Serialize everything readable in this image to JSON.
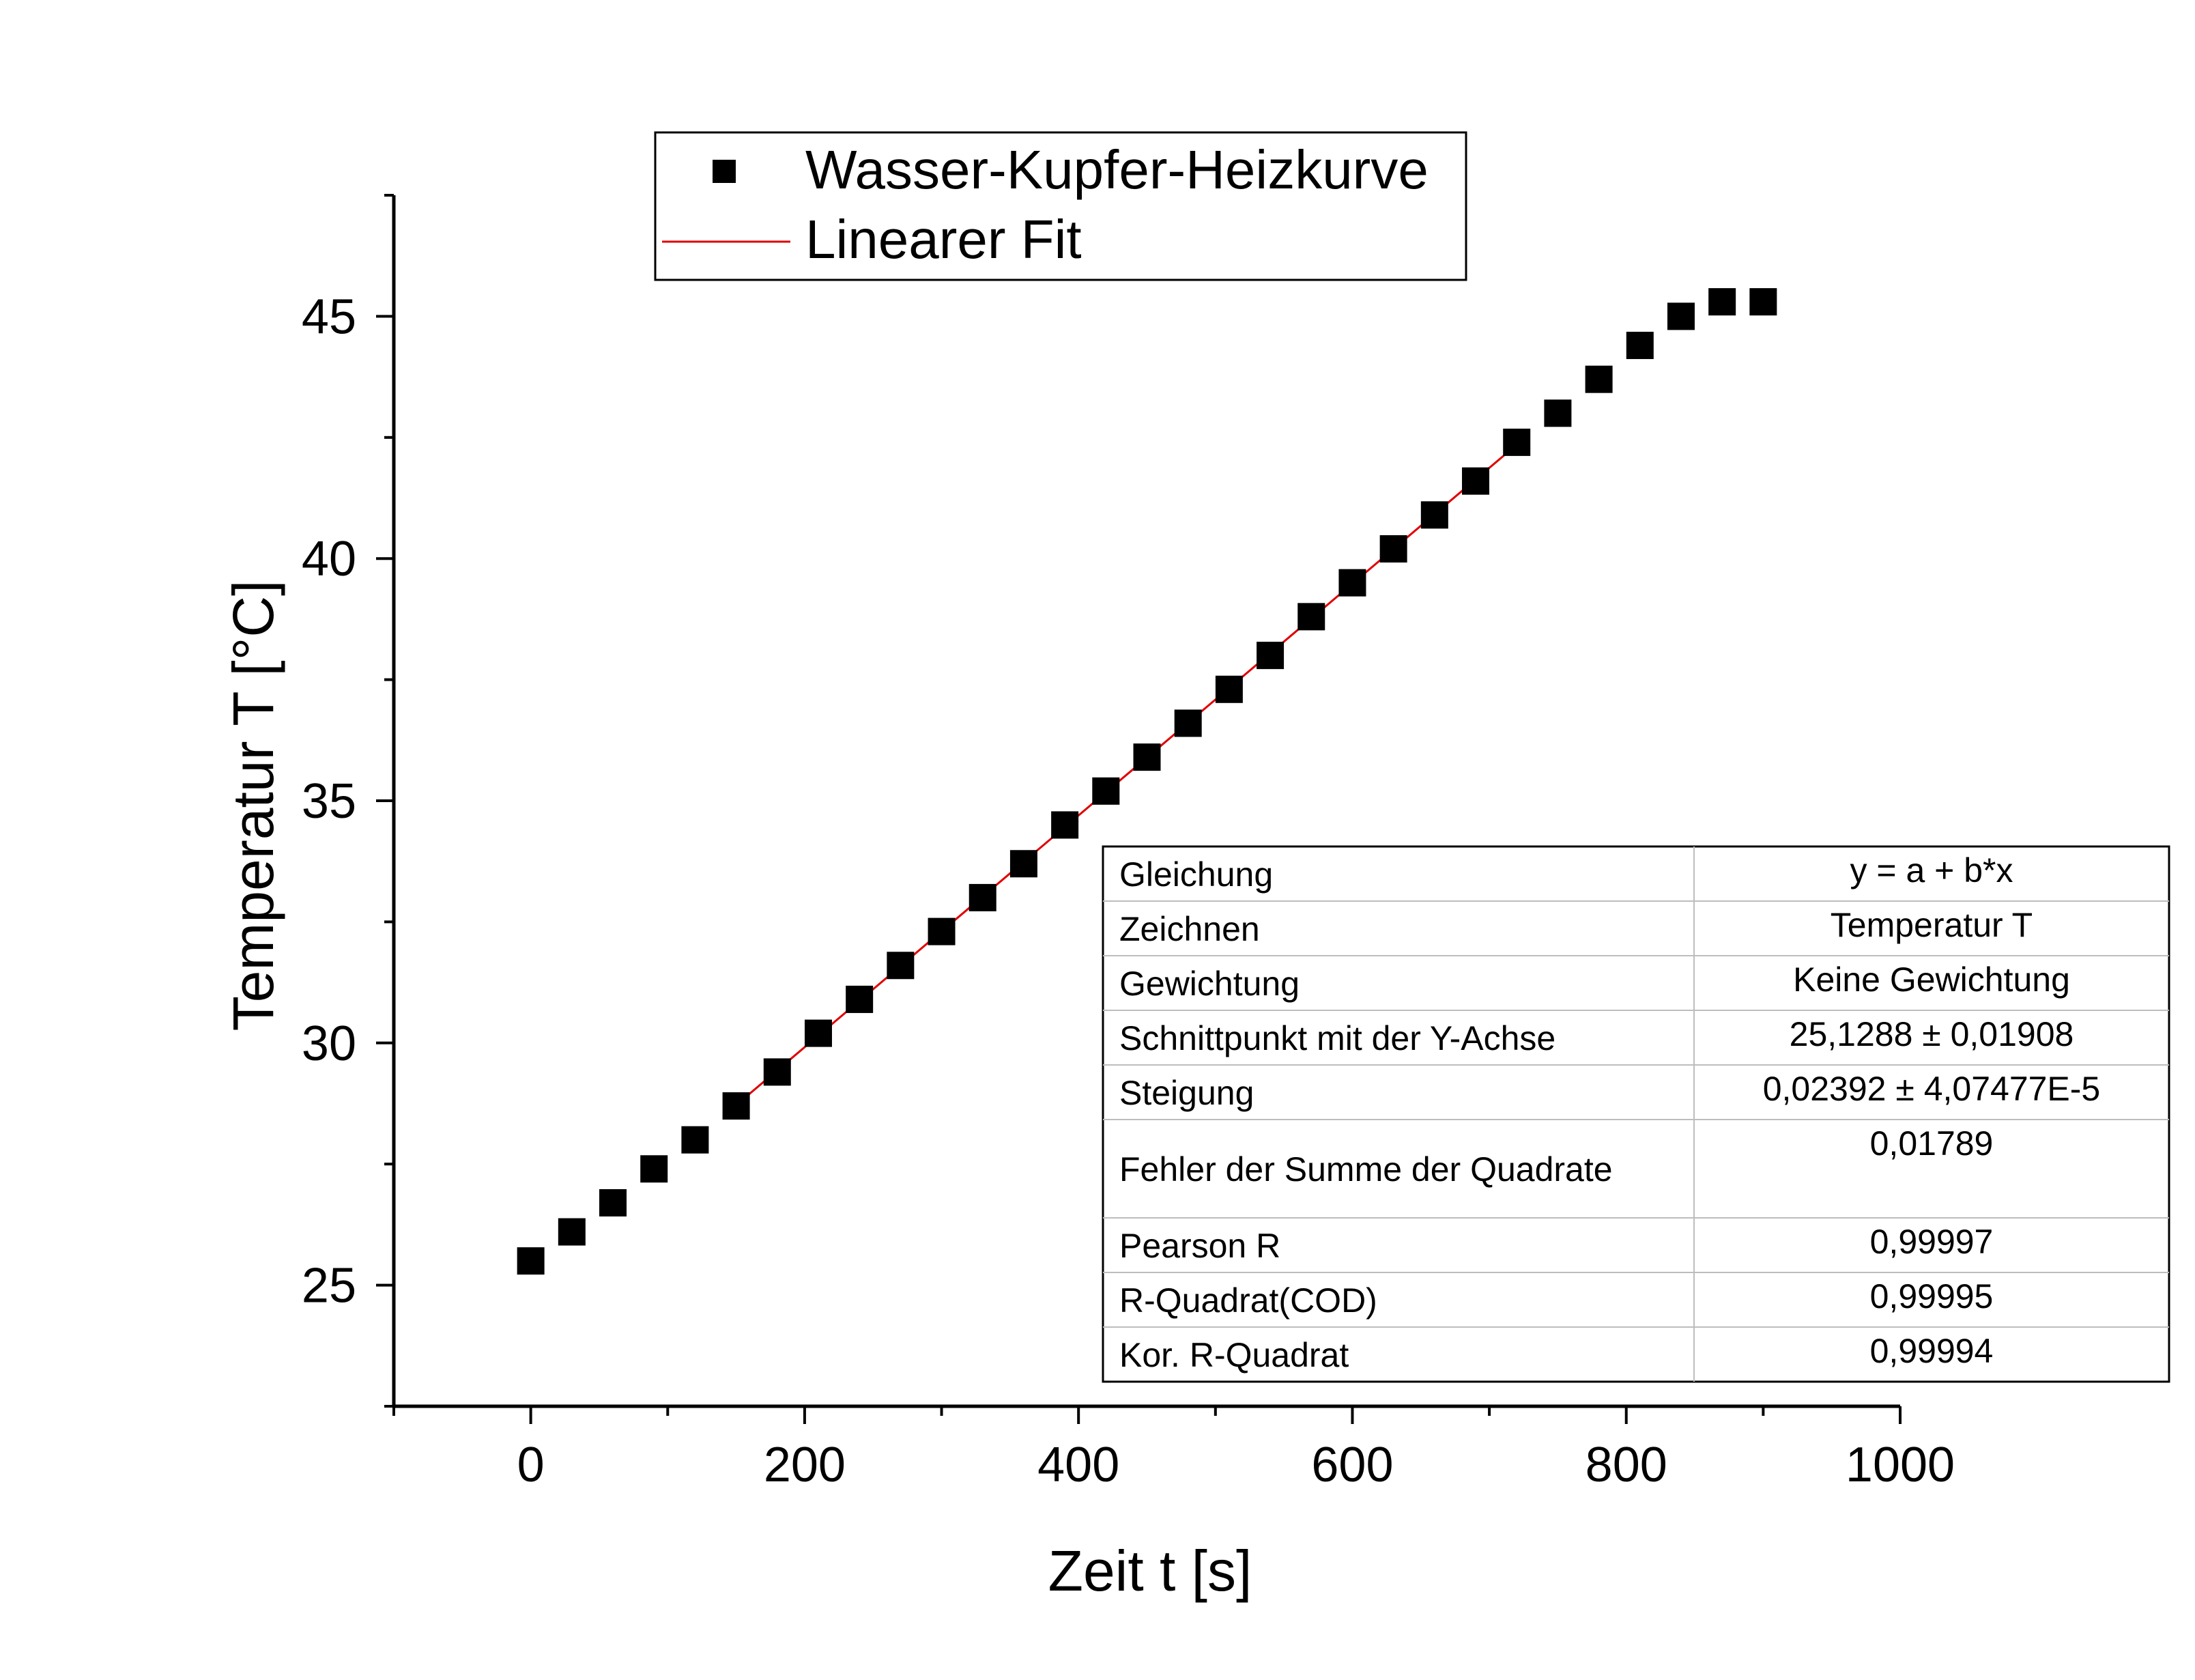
{
  "chart_data": {
    "type": "scatter",
    "xlabel": "Zeit t [s]",
    "ylabel": "Temperatur T [°C]",
    "xlim": [
      -100,
      1000
    ],
    "ylim": [
      22.5,
      47.5
    ],
    "x_ticks": [
      0,
      200,
      400,
      600,
      800,
      1000
    ],
    "y_ticks": [
      25,
      30,
      35,
      40,
      45
    ],
    "grid": false,
    "legend_position": "top-left",
    "series": [
      {
        "name": "Wasser-Kupfer-Heizkurve",
        "marker": "square",
        "color": "#000000",
        "x": [
          0,
          30,
          60,
          90,
          120,
          150,
          180,
          210,
          240,
          270,
          300,
          330,
          360,
          390,
          420,
          450,
          480,
          510,
          540,
          570,
          600,
          630,
          660,
          690,
          720,
          750,
          780,
          810,
          840,
          870,
          900
        ],
        "y": [
          25.5,
          26.1,
          26.7,
          27.4,
          28.0,
          28.7,
          29.4,
          30.2,
          30.9,
          31.6,
          32.3,
          33.0,
          33.7,
          34.5,
          35.2,
          35.9,
          36.6,
          37.3,
          38.0,
          38.8,
          39.5,
          40.2,
          40.9,
          41.6,
          42.4,
          43.0,
          43.7,
          44.4,
          45.0,
          45.3,
          45.3
        ]
      },
      {
        "name": "Linearer Fit",
        "marker": "line",
        "color": "#e00000",
        "x": [
          150,
          720
        ],
        "y": [
          28.717,
          42.351
        ]
      }
    ],
    "fit_table": [
      {
        "label": "Gleichung",
        "value": "y = a + b*x"
      },
      {
        "label": "Zeichnen",
        "value": "Temperatur T"
      },
      {
        "label": "Gewichtung",
        "value": "Keine Gewichtung"
      },
      {
        "label": "Schnittpunkt mit der Y-Achse",
        "value": "25,1288 ± 0,01908"
      },
      {
        "label": "Steigung",
        "value": "0,02392 ± 4,07477E-5"
      },
      {
        "label": "Fehler der Summe der Quadrate",
        "value": "0,01789"
      },
      {
        "label": "Pearson R",
        "value": "0,99997"
      },
      {
        "label": "R-Quadrat(COD)",
        "value": "0,99995"
      },
      {
        "label": "Kor. R-Quadrat",
        "value": "0,99994"
      }
    ]
  }
}
